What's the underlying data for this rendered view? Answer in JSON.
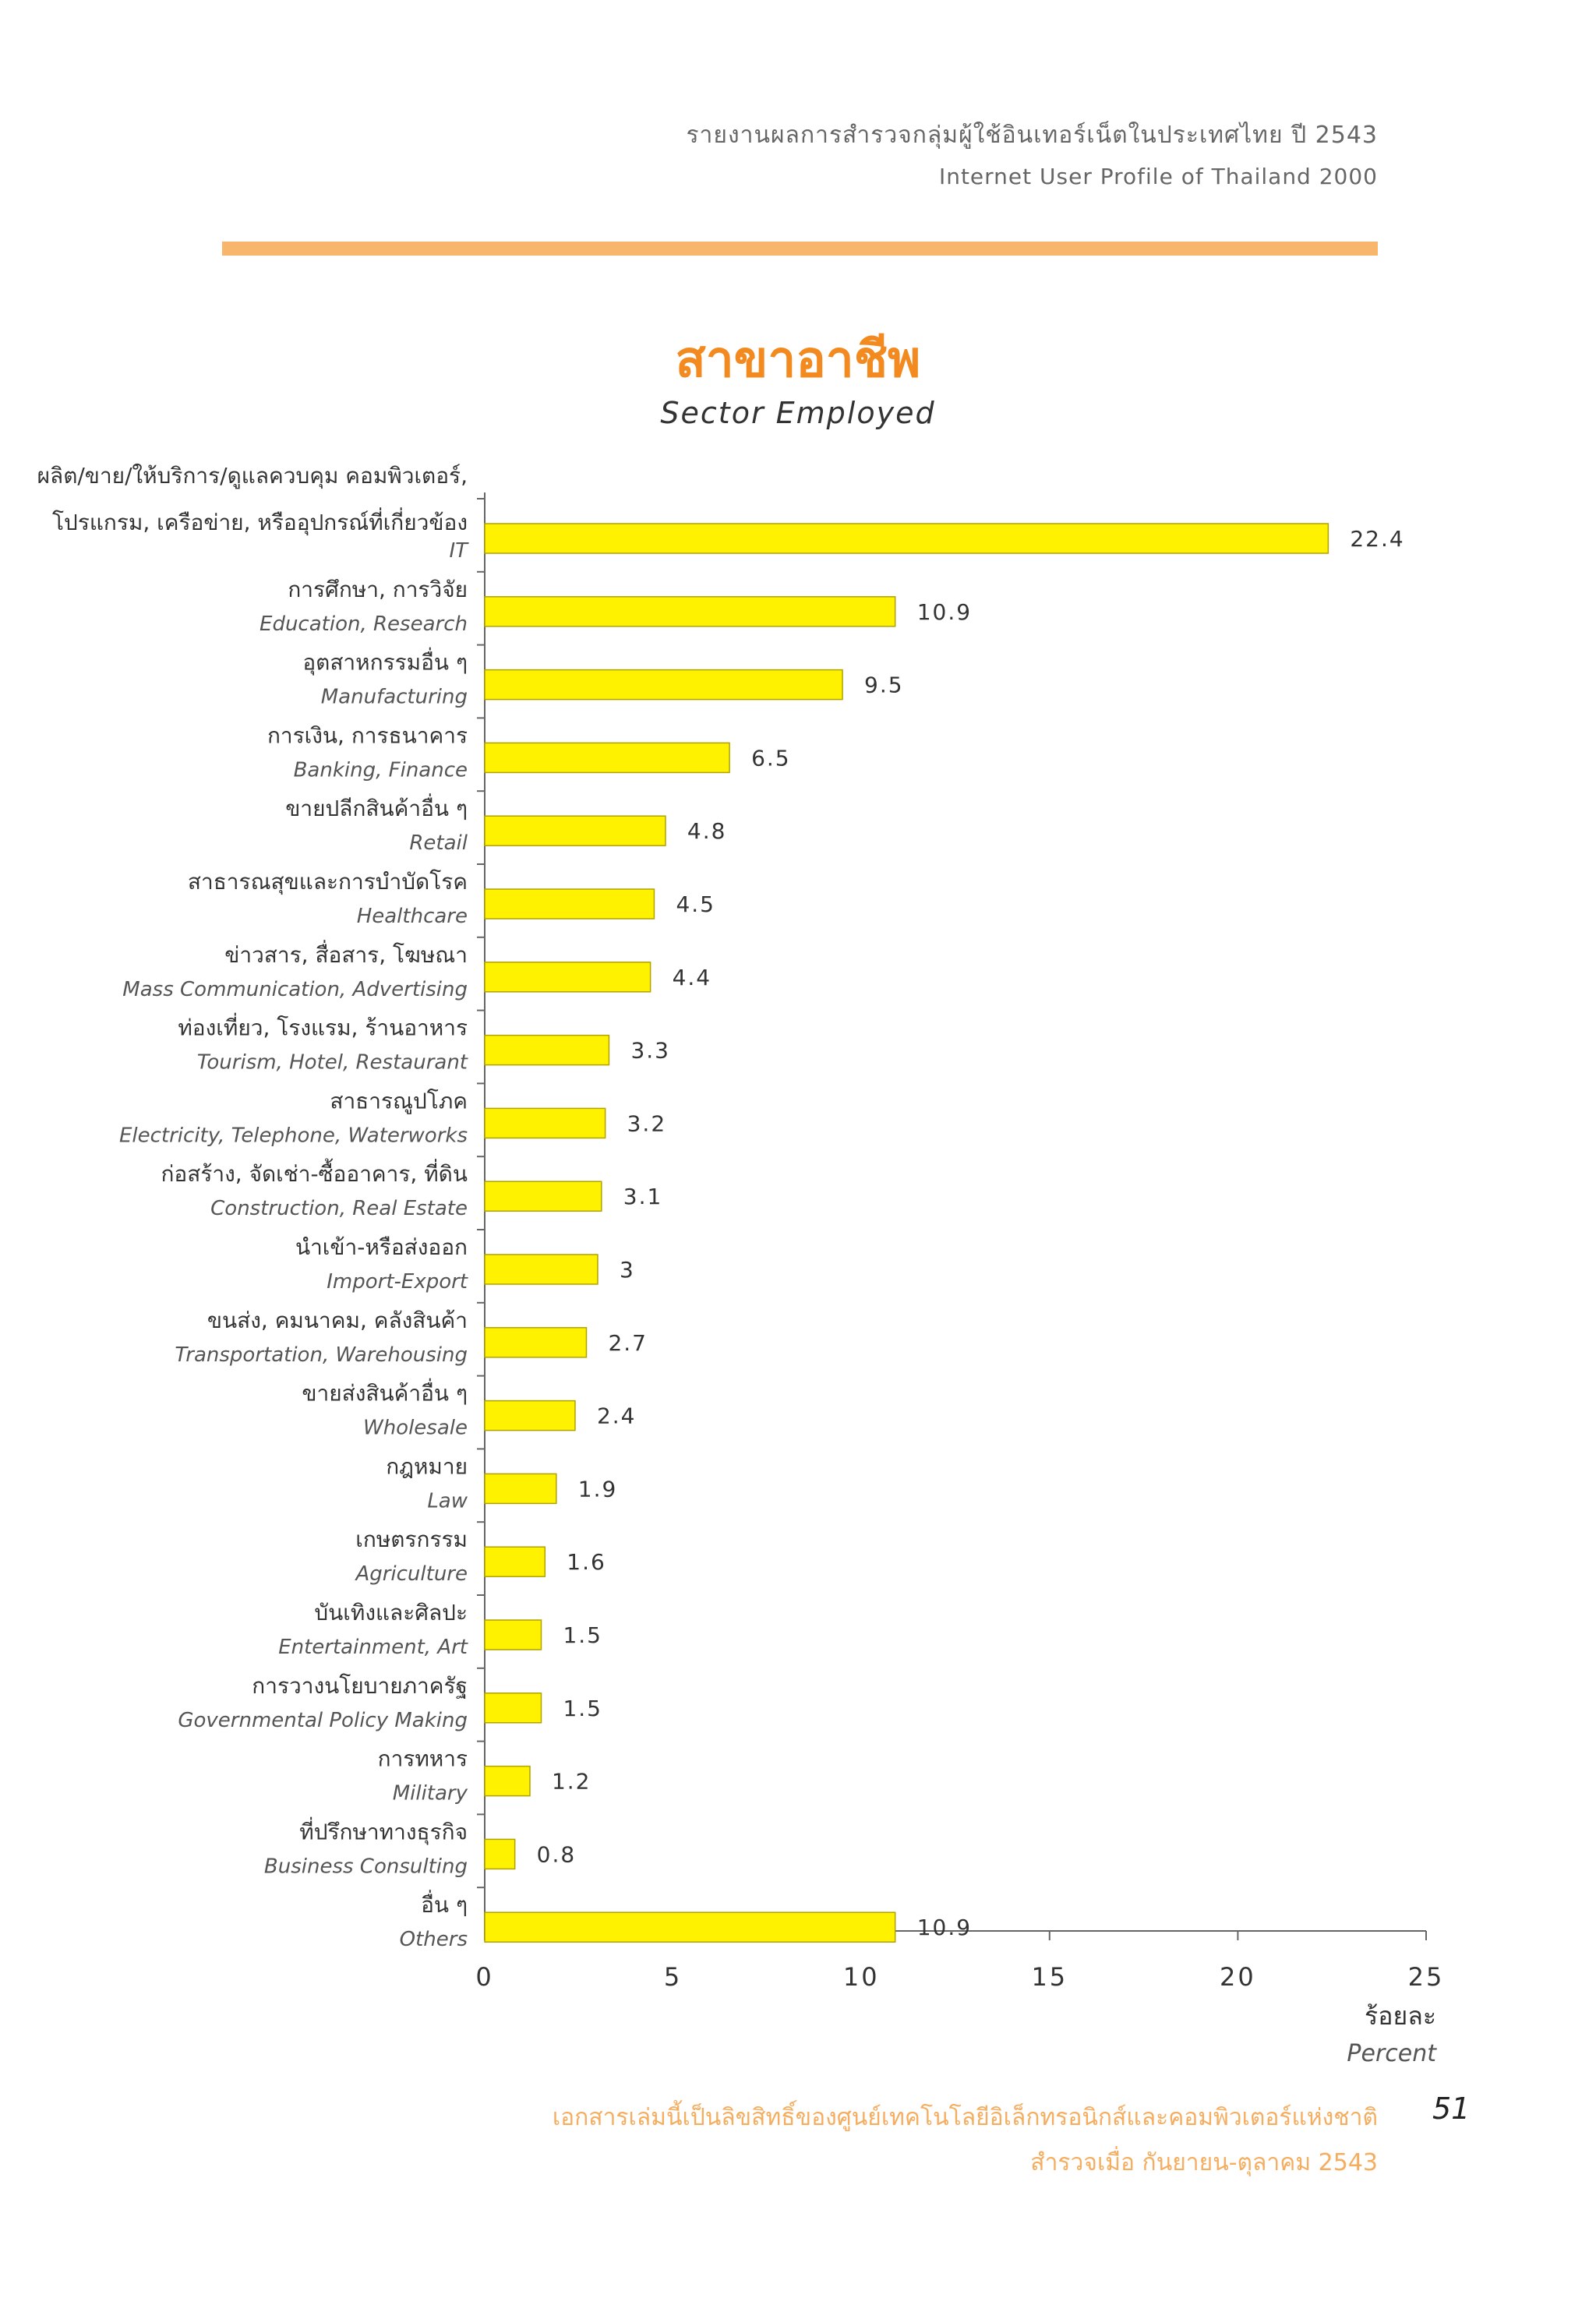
{
  "header": {
    "title_th": "รายงานผลการสำรวจกลุ่มผู้ใช้อินเทอร์เน็ตในประเทศไทย ปี 2543",
    "title_en": "Internet User Profile of Thailand 2000"
  },
  "colors": {
    "accent_rule": "#f7b66c",
    "title": "#f28a1f",
    "bar": "#fff200",
    "footer": "#f5ad5f"
  },
  "chart_data": {
    "type": "bar",
    "orientation": "horizontal",
    "title": "สาขาอาชีพ",
    "subtitle": "Sector Employed",
    "xlabel_th": "ร้อยละ",
    "xlabel_en": "Percent",
    "xlim": [
      0,
      25
    ],
    "xticks": [
      "0",
      "5",
      "10",
      "15",
      "20",
      "25"
    ],
    "categories": [
      {
        "th": [
          "ผลิต/ขาย/ให้บริการ/ดูแลควบคุม คอมพิวเตอร์,",
          "โปรแกรม, เครือข่าย, หรืออุปกรณ์ที่เกี่ยวข้อง"
        ],
        "en": "IT",
        "value": 22.4,
        "label": "22.4"
      },
      {
        "th": [
          "การศึกษา, การวิจัย"
        ],
        "en": "Education, Research",
        "value": 10.9,
        "label": "10.9"
      },
      {
        "th": [
          "อุตสาหกรรมอื่น ๆ"
        ],
        "en": "Manufacturing",
        "value": 9.5,
        "label": "9.5"
      },
      {
        "th": [
          "การเงิน, การธนาคาร"
        ],
        "en": "Banking, Finance",
        "value": 6.5,
        "label": "6.5"
      },
      {
        "th": [
          "ขายปลีกสินค้าอื่น ๆ"
        ],
        "en": "Retail",
        "value": 4.8,
        "label": "4.8"
      },
      {
        "th": [
          "สาธารณสุขและการบำบัดโรค"
        ],
        "en": "Healthcare",
        "value": 4.5,
        "label": "4.5"
      },
      {
        "th": [
          "ข่าวสาร, สื่อสาร, โฆษณา"
        ],
        "en": "Mass Communication, Advertising",
        "value": 4.4,
        "label": "4.4"
      },
      {
        "th": [
          "ท่องเที่ยว, โรงแรม, ร้านอาหาร"
        ],
        "en": "Tourism, Hotel, Restaurant",
        "value": 3.3,
        "label": "3.3"
      },
      {
        "th": [
          "สาธารณูปโภค"
        ],
        "en": "Electricity, Telephone, Waterworks",
        "value": 3.2,
        "label": "3.2"
      },
      {
        "th": [
          "ก่อสร้าง, จัดเช่า-ซื้ออาคาร, ที่ดิน"
        ],
        "en": "Construction, Real Estate",
        "value": 3.1,
        "label": "3.1"
      },
      {
        "th": [
          "นำเข้า-หรือส่งออก"
        ],
        "en": "Import-Export",
        "value": 3.0,
        "label": "3"
      },
      {
        "th": [
          "ขนส่ง, คมนาคม, คลังสินค้า"
        ],
        "en": "Transportation, Warehousing",
        "value": 2.7,
        "label": "2.7"
      },
      {
        "th": [
          "ขายส่งสินค้าอื่น ๆ"
        ],
        "en": "Wholesale",
        "value": 2.4,
        "label": "2.4"
      },
      {
        "th": [
          "กฎหมาย"
        ],
        "en": "Law",
        "value": 1.9,
        "label": "1.9"
      },
      {
        "th": [
          "เกษตรกรรม"
        ],
        "en": "Agriculture",
        "value": 1.6,
        "label": "1.6"
      },
      {
        "th": [
          "บันเทิงและศิลปะ"
        ],
        "en": "Entertainment, Art",
        "value": 1.5,
        "label": "1.5"
      },
      {
        "th": [
          "การวางนโยบายภาครัฐ"
        ],
        "en": "Governmental Policy Making",
        "value": 1.5,
        "label": "1.5"
      },
      {
        "th": [
          "การทหาร"
        ],
        "en": "Military",
        "value": 1.2,
        "label": "1.2"
      },
      {
        "th": [
          "ที่ปรึกษาทางธุรกิจ"
        ],
        "en": "Business Consulting",
        "value": 0.8,
        "label": "0.8"
      },
      {
        "th": [
          "อื่น ๆ"
        ],
        "en": "Others",
        "value": 10.9,
        "label": "10.9"
      }
    ]
  },
  "footer": {
    "line1": "เอกสารเล่มนี้เป็นลิขสิทธิ์ของศูนย์เทคโนโลยีอิเล็กทรอนิกส์และคอมพิวเตอร์แห่งชาติ",
    "line2": "สำรวจเมื่อ กันยายน-ตุลาคม 2543",
    "page_number": "51"
  }
}
